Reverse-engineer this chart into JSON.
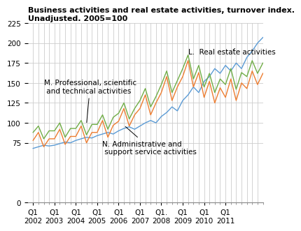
{
  "title": "Business activities and real estate activities, turnover index.\nUnadjusted. 2005=100",
  "ylim": [
    0,
    225
  ],
  "yticks": [
    0,
    75,
    100,
    125,
    150,
    175,
    200,
    225
  ],
  "colors": {
    "L": "#5b9bd5",
    "M": "#70ad47",
    "N": "#ed7d31"
  },
  "label_L": "L.  Real estate activities",
  "label_M": "M. Professional, scientific\n and technical activities",
  "label_N": "N. Administrative and\n support service activities",
  "xtick_labels": [
    "Q1\n2002",
    "Q1\n2003",
    "Q1\n2004",
    "Q1\n2005",
    "Q1\n2006",
    "Q1\n2007",
    "Q1.\n2008",
    "Q1\n2009",
    "Q1\n2010",
    "Q1\n2011"
  ],
  "L": [
    68,
    70,
    72,
    71,
    72,
    74,
    76,
    75,
    78,
    80,
    82,
    81,
    84,
    86,
    88,
    86,
    90,
    93,
    95,
    92,
    96,
    100,
    103,
    100,
    108,
    113,
    120,
    115,
    128,
    135,
    145,
    138,
    152,
    158,
    168,
    162,
    172,
    165,
    175,
    168,
    182,
    190,
    200,
    207
  ],
  "M": [
    88,
    96,
    80,
    90,
    90,
    100,
    82,
    93,
    93,
    103,
    85,
    98,
    98,
    110,
    92,
    107,
    112,
    125,
    105,
    118,
    128,
    143,
    120,
    133,
    148,
    165,
    138,
    153,
    168,
    185,
    155,
    172,
    145,
    162,
    138,
    155,
    148,
    168,
    142,
    163,
    158,
    178,
    162,
    175
  ],
  "N": [
    78,
    88,
    70,
    80,
    80,
    92,
    73,
    83,
    83,
    96,
    75,
    88,
    88,
    103,
    82,
    97,
    102,
    118,
    96,
    110,
    118,
    135,
    110,
    125,
    138,
    158,
    128,
    145,
    158,
    178,
    145,
    163,
    132,
    152,
    125,
    144,
    132,
    155,
    128,
    150,
    143,
    165,
    148,
    162
  ]
}
